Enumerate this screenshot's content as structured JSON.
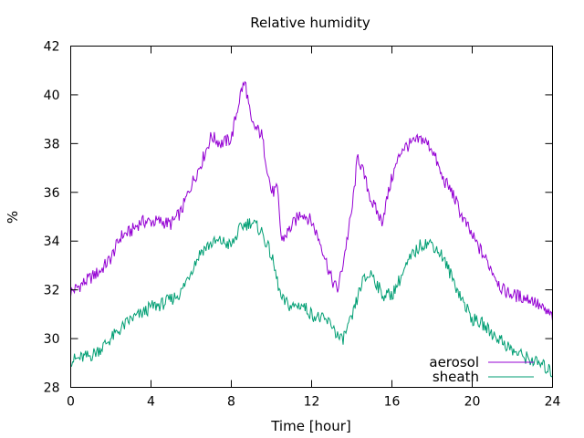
{
  "chart_data": {
    "type": "line",
    "title": "Relative humidity",
    "xlabel": "Time [hour]",
    "ylabel": "%",
    "xlim": [
      0,
      24
    ],
    "ylim": [
      28,
      42
    ],
    "xticks": [
      0,
      4,
      8,
      12,
      16,
      20,
      24
    ],
    "yticks": [
      28,
      30,
      32,
      34,
      36,
      38,
      40,
      42
    ],
    "grid": false,
    "legend": "bottom-right",
    "series": [
      {
        "name": "aerosol",
        "color": "#9400d3",
        "x": [
          0,
          0.5,
          1,
          1.5,
          2,
          2.5,
          3,
          3.5,
          4,
          4.5,
          5,
          5.5,
          6,
          6.5,
          7,
          7.5,
          8,
          8.5,
          8.7,
          9,
          9.5,
          10,
          10.3,
          10.5,
          11,
          11.5,
          12,
          12.5,
          13,
          13.3,
          13.5,
          14,
          14.3,
          14.5,
          15,
          15.5,
          16,
          16.5,
          17,
          17.5,
          18,
          18.5,
          19,
          19.5,
          20,
          20.5,
          21,
          21.5,
          22,
          22.5,
          23,
          23.5,
          24
        ],
        "y": [
          31.9,
          32.2,
          32.5,
          32.8,
          33.3,
          34.2,
          34.4,
          34.8,
          34.8,
          34.8,
          34.7,
          35.2,
          36.3,
          37.2,
          38.3,
          38.0,
          38.2,
          40.2,
          40.5,
          38.8,
          38.4,
          36.0,
          36.1,
          34.0,
          34.6,
          35.2,
          34.8,
          33.8,
          32.4,
          32.0,
          32.8,
          35.2,
          37.5,
          37.0,
          35.6,
          34.8,
          36.6,
          37.8,
          38.0,
          38.2,
          37.8,
          36.6,
          36.0,
          35.0,
          34.2,
          33.5,
          32.8,
          32.0,
          31.8,
          31.7,
          31.6,
          31.2,
          30.9
        ]
      },
      {
        "name": "sheath",
        "color": "#009e73",
        "x": [
          0,
          0.5,
          1,
          1.5,
          2,
          2.5,
          3,
          3.5,
          4,
          4.5,
          5,
          5.5,
          6,
          6.5,
          7,
          7.5,
          8,
          8.5,
          9,
          9.5,
          10,
          10.5,
          11,
          11.5,
          12,
          12.5,
          13,
          13.3,
          13.5,
          14,
          14.5,
          15,
          15.5,
          16,
          16.5,
          17,
          17.5,
          18,
          18.5,
          19,
          19.5,
          20,
          20.5,
          21,
          21.5,
          22,
          22.5,
          23,
          23.5,
          24
        ],
        "y": [
          29.1,
          29.2,
          29.3,
          29.6,
          30.0,
          30.4,
          30.8,
          31.0,
          31.3,
          31.4,
          31.6,
          31.9,
          32.8,
          33.6,
          33.9,
          34.0,
          33.8,
          34.6,
          34.8,
          34.4,
          33.4,
          31.6,
          31.3,
          31.4,
          31.0,
          30.8,
          30.6,
          30.1,
          29.9,
          30.8,
          32.3,
          32.7,
          31.8,
          31.8,
          32.6,
          33.4,
          33.9,
          33.9,
          33.4,
          32.5,
          31.6,
          30.8,
          30.6,
          30.2,
          29.9,
          29.5,
          29.3,
          29.1,
          28.9,
          28.6
        ]
      }
    ]
  }
}
